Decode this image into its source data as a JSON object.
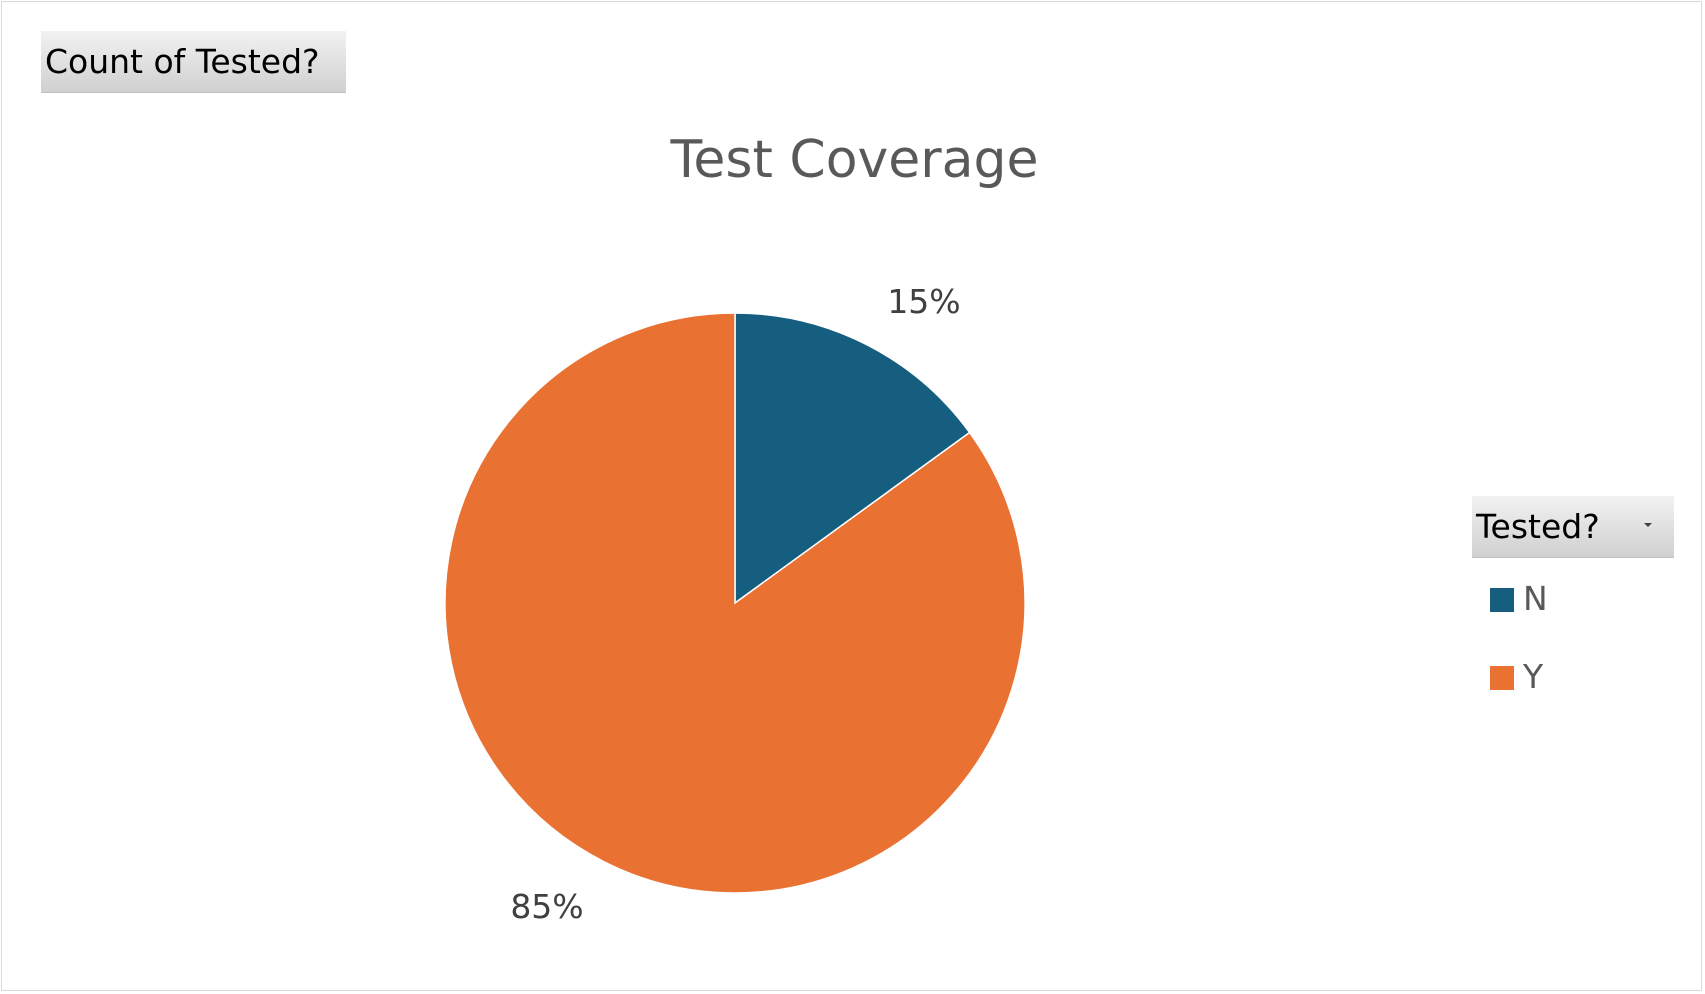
{
  "field_button": {
    "label": "Count of Tested?"
  },
  "legend_button": {
    "label": "Tested?"
  },
  "chart_data": {
    "type": "pie",
    "title": "Test Coverage",
    "legend_placement": "right",
    "slices": [
      {
        "name": "N",
        "value": 15,
        "label": "15%",
        "color": "#165E80"
      },
      {
        "name": "Y",
        "value": 85,
        "label": "85%",
        "color": "#E97132"
      }
    ]
  }
}
